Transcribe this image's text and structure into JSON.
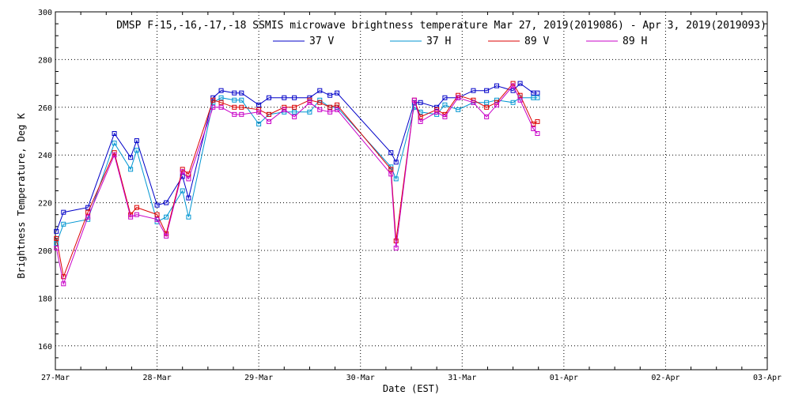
{
  "chart_data": {
    "type": "line",
    "title": "DMSP F-15,-16,-17,-18 SSMIS microwave brightness temperature Mar 27, 2019(2019086) - Apr  3, 2019(2019093)",
    "xlabel": "Date (EST)",
    "ylabel": "Brightness Temperature, Deg K",
    "xlim": [
      0,
      7
    ],
    "ylim": [
      150,
      300
    ],
    "x_ticks": [
      {
        "value": 0,
        "label": "27-Mar"
      },
      {
        "value": 1,
        "label": "28-Mar"
      },
      {
        "value": 2,
        "label": "29-Mar"
      },
      {
        "value": 3,
        "label": "30-Mar"
      },
      {
        "value": 4,
        "label": "31-Mar"
      },
      {
        "value": 5,
        "label": "01-Apr"
      },
      {
        "value": 6,
        "label": "02-Apr"
      },
      {
        "value": 7,
        "label": "03-Apr"
      }
    ],
    "y_ticks": [
      160,
      180,
      200,
      220,
      240,
      260,
      280,
      300
    ],
    "grid": true,
    "legend_position": "top",
    "series": [
      {
        "name": "37 V",
        "color": "#0000c8",
        "x": [
          0.01,
          0.08,
          0.32,
          0.58,
          0.74,
          0.8,
          1.0,
          1.09,
          1.25,
          1.31,
          1.55,
          1.63,
          1.76,
          1.83,
          2.0,
          2.1,
          2.25,
          2.35,
          2.5,
          2.6,
          2.7,
          2.77,
          3.3,
          3.35,
          3.53,
          3.59,
          3.75,
          3.83,
          3.96,
          4.11,
          4.24,
          4.34,
          4.5,
          4.57,
          4.7,
          4.74
        ],
        "y": [
          208,
          216,
          218,
          249,
          239,
          246,
          219,
          220,
          231,
          222,
          264,
          267,
          266,
          266,
          261,
          264,
          264,
          264,
          264,
          267,
          265,
          266,
          241,
          237,
          262,
          262,
          260,
          264,
          264,
          267,
          267,
          269,
          267,
          270,
          266,
          266
        ]
      },
      {
        "name": "37 H",
        "color": "#0096d2",
        "x": [
          0.01,
          0.08,
          0.32,
          0.58,
          0.74,
          0.8,
          1.0,
          1.09,
          1.25,
          1.31,
          1.55,
          1.63,
          1.76,
          1.83,
          2.0,
          2.1,
          2.25,
          2.35,
          2.5,
          2.6,
          2.7,
          2.77,
          3.3,
          3.35,
          3.53,
          3.59,
          3.75,
          3.83,
          3.96,
          4.11,
          4.24,
          4.34,
          4.5,
          4.57,
          4.7,
          4.74
        ],
        "y": [
          203,
          211,
          213,
          245,
          234,
          242,
          212,
          214,
          225,
          214,
          262,
          264,
          263,
          263,
          253,
          257,
          258,
          258,
          258,
          263,
          260,
          260,
          235,
          230,
          260,
          258,
          257,
          261,
          259,
          262,
          262,
          263,
          262,
          264,
          264,
          264
        ]
      },
      {
        "name": "89 V",
        "color": "#dc0000",
        "x": [
          0.01,
          0.08,
          0.32,
          0.58,
          0.74,
          0.8,
          1.0,
          1.09,
          1.25,
          1.31,
          1.55,
          1.63,
          1.76,
          1.83,
          2.0,
          2.1,
          2.25,
          2.35,
          2.5,
          2.6,
          2.7,
          2.77,
          3.3,
          3.35,
          3.53,
          3.59,
          3.75,
          3.83,
          3.96,
          4.11,
          4.24,
          4.34,
          4.5,
          4.57,
          4.7,
          4.74
        ],
        "y": [
          205,
          189,
          216,
          241,
          215,
          218,
          215,
          207,
          234,
          232,
          263,
          262,
          260,
          260,
          259,
          257,
          260,
          260,
          263,
          262,
          260,
          261,
          234,
          204,
          263,
          256,
          259,
          257,
          265,
          263,
          260,
          262,
          270,
          265,
          253,
          254
        ]
      },
      {
        "name": "89 H",
        "color": "#c800c8",
        "x": [
          0.01,
          0.08,
          0.32,
          0.58,
          0.74,
          0.8,
          1.0,
          1.09,
          1.25,
          1.31,
          1.55,
          1.63,
          1.76,
          1.83,
          2.0,
          2.1,
          2.25,
          2.35,
          2.5,
          2.6,
          2.7,
          2.77,
          3.3,
          3.35,
          3.53,
          3.59,
          3.75,
          3.83,
          3.96,
          4.11,
          4.24,
          4.34,
          4.5,
          4.57,
          4.7,
          4.74
        ],
        "y": [
          201,
          186,
          214,
          240,
          214,
          215,
          213,
          206,
          233,
          230,
          260,
          260,
          257,
          257,
          258,
          254,
          259,
          256,
          262,
          259,
          258,
          259,
          232,
          201,
          263,
          254,
          258,
          256,
          264,
          262,
          256,
          261,
          269,
          263,
          251,
          249
        ]
      }
    ]
  }
}
